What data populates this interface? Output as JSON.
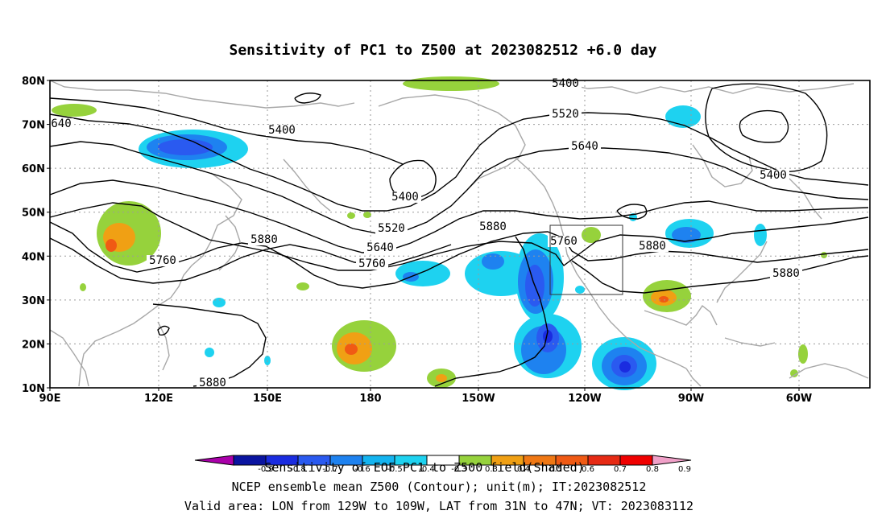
{
  "title": "Sensitivity of PC1 to Z500 at 2023082512 +6.0 day",
  "lat_labels": [
    "80N",
    "70N",
    "60N",
    "50N",
    "40N",
    "30N",
    "20N",
    "10N"
  ],
  "lon_labels": [
    "90E",
    "120E",
    "150E",
    "180",
    "150W",
    "120W",
    "90W",
    "60W"
  ],
  "contour_labels": {
    "c1": "5400",
    "c2": "5520",
    "c3": "5640",
    "c4": "5400",
    "c5": "5400",
    "c6": "5400",
    "c7": "5520",
    "c8": "5640",
    "c9": "5760",
    "c10": "5880",
    "c11": "5880",
    "c12": "5760",
    "c13": "5880",
    "c14": "5880",
    "c15": "5880",
    "c16": "5760",
    "c17": "5640",
    "c18": "5520",
    "c19": "640"
  },
  "colorbar": {
    "ticks": [
      "-0.9",
      "-0.8",
      "-0.7",
      "-0.6",
      "-0.5",
      "-0.4",
      "-0.3",
      "0.3",
      "0.4",
      "0.5",
      "0.6",
      "0.7",
      "0.8",
      "0.9"
    ],
    "colors": [
      "#aa00aa",
      "#0a14a0",
      "#1a2ce0",
      "#2a5af0",
      "#1e82f0",
      "#14b4f0",
      "#1ed2f0",
      "#ffffff",
      "#96d23c",
      "#f0a014",
      "#f07814",
      "#f05a14",
      "#e62a14",
      "#f00000",
      "#f0a0c8"
    ]
  },
  "footer": {
    "line1": "Sensitivity of EOF PC1 to Z500 field(Shaded)",
    "line2": "NCEP ensemble mean Z500 (Contour); unit(m); IT:2023082512",
    "line3": "Valid area: LON from 129W to 109W, LAT from 31N to 47N; VT: 2023083112"
  }
}
